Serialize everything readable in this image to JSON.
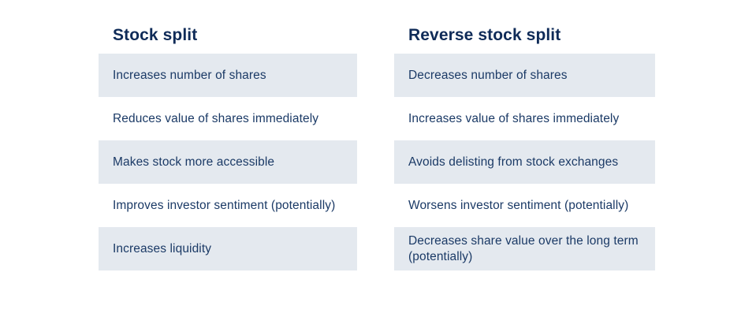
{
  "infographic": {
    "type": "comparison-table",
    "background": "#ffffff"
  },
  "colors": {
    "heading_text": "#0f2b58",
    "body_text": "#1b3a66",
    "row_shaded_background": "#e4e9ef",
    "row_plain_background": "#ffffff"
  },
  "columns": [
    {
      "title": "Stock split",
      "rows": [
        "Increases number of shares",
        "Reduces value of shares immediately",
        "Makes stock more accessible",
        "Improves investor sentiment (potentially)",
        "Increases liquidity"
      ]
    },
    {
      "title": "Reverse stock split",
      "rows": [
        "Decreases number of shares",
        "Increases value of shares immediately",
        "Avoids delisting from stock exchanges",
        "Worsens investor sentiment (potentially)",
        "Decreases share value over the long term (potentially)"
      ]
    }
  ]
}
